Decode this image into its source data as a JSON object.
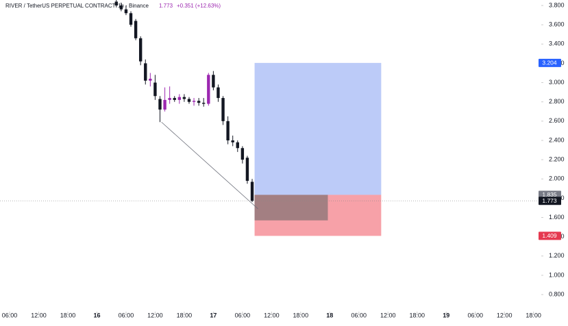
{
  "chart_data": {
    "type": "candlestick",
    "header": {
      "symbol": "RIVER / TetherUS PERPETUAL CONTRACT",
      "interval": "1h · Binance",
      "last": 1.773,
      "change": "+0.351 (+12.63%)"
    },
    "x": [
      28,
      29,
      30,
      31,
      32,
      33,
      34,
      35,
      36,
      37,
      38,
      39,
      40,
      41,
      42,
      43,
      44,
      45,
      46,
      47,
      48,
      49,
      50,
      51,
      52,
      53,
      54,
      55,
      56
    ],
    "open": [
      3.84,
      3.8,
      3.76,
      3.72,
      3.64,
      3.46,
      3.2,
      3.02,
      3.0,
      2.83,
      2.72,
      2.82,
      2.84,
      2.82,
      2.85,
      2.83,
      2.8,
      2.81,
      2.79,
      2.78,
      3.08,
      2.95,
      2.84,
      2.6,
      2.4,
      2.38,
      2.32,
      2.22,
      1.97
    ],
    "high": [
      3.86,
      3.83,
      3.8,
      3.74,
      3.66,
      3.48,
      3.24,
      3.1,
      3.08,
      2.86,
      2.95,
      2.96,
      2.86,
      2.88,
      2.88,
      2.85,
      2.84,
      2.84,
      2.84,
      3.1,
      3.12,
      2.98,
      2.86,
      2.65,
      2.45,
      2.4,
      2.34,
      2.24,
      2.0
    ],
    "low": [
      3.78,
      3.74,
      3.7,
      3.58,
      3.44,
      3.18,
      2.98,
      2.96,
      2.82,
      2.59,
      2.7,
      2.78,
      2.8,
      2.78,
      2.8,
      2.78,
      2.76,
      2.76,
      2.75,
      2.76,
      2.92,
      2.8,
      2.56,
      2.36,
      2.34,
      2.28,
      2.16,
      1.95,
      1.76
    ],
    "close": [
      3.8,
      3.76,
      3.72,
      3.6,
      3.46,
      3.22,
      3.02,
      3.04,
      2.86,
      2.72,
      2.82,
      2.84,
      2.82,
      2.85,
      2.83,
      2.8,
      2.81,
      2.79,
      2.78,
      3.08,
      2.95,
      2.84,
      2.6,
      2.4,
      2.38,
      2.32,
      2.2,
      1.98,
      1.773
    ],
    "up_color": "#9c27b0",
    "down_color": "#131722",
    "xlim": [
      4.02,
      115.6
    ],
    "xticks": [
      {
        "value": 6,
        "label": "06:00"
      },
      {
        "value": 12,
        "label": "12:00"
      },
      {
        "value": 18,
        "label": "18:00"
      },
      {
        "value": 24,
        "label": "16"
      },
      {
        "value": 30,
        "label": "06:00"
      },
      {
        "value": 36,
        "label": "12:00"
      },
      {
        "value": 42,
        "label": "18:00"
      },
      {
        "value": 48,
        "label": "17"
      },
      {
        "value": 54,
        "label": "06:00"
      },
      {
        "value": 60,
        "label": "12:00"
      },
      {
        "value": 66,
        "label": "18:00"
      },
      {
        "value": 72,
        "label": "18"
      },
      {
        "value": 78,
        "label": "06:00"
      },
      {
        "value": 84,
        "label": "12:00"
      },
      {
        "value": 90,
        "label": "18:00"
      },
      {
        "value": 96,
        "label": "19"
      },
      {
        "value": 102,
        "label": "06:00"
      },
      {
        "value": 108,
        "label": "12:00"
      },
      {
        "value": 114,
        "label": "18:00"
      }
    ],
    "ylim": [
      0.623,
      3.857
    ],
    "yticks": [
      {
        "value": 0.8,
        "label": "0.800"
      },
      {
        "value": 1.0,
        "label": "1.000"
      },
      {
        "value": 1.2,
        "label": "1.200"
      },
      {
        "value": 1.4,
        "label": "1.400"
      },
      {
        "value": 1.6,
        "label": "1.600"
      },
      {
        "value": 1.8,
        "label": "1.800"
      },
      {
        "value": 2.0,
        "label": "2.000"
      },
      {
        "value": 2.2,
        "label": "2.200"
      },
      {
        "value": 2.4,
        "label": "2.400"
      },
      {
        "value": 2.6,
        "label": "2.600"
      },
      {
        "value": 2.8,
        "label": "2.800"
      },
      {
        "value": 3.0,
        "label": "3.000"
      },
      {
        "value": 3.2,
        "label": "3.200"
      },
      {
        "value": 3.4,
        "label": "3.400"
      },
      {
        "value": 3.6,
        "label": "3.600"
      },
      {
        "value": 3.8,
        "label": "3.800"
      }
    ],
    "position": {
      "x_start": 56.5,
      "x_end": 82.6,
      "target": 3.204,
      "entry": 1.835,
      "stop": 1.409,
      "profit_color": "#bccbf8",
      "loss_color": "#f7a1a8",
      "target_tag": "#2962ff",
      "entry_tag": "#787b86",
      "stop_tag": "#e53950"
    },
    "shaded_range": {
      "x_start": 56.5,
      "x_end": 71.6,
      "top": 1.835,
      "bottom": 1.57,
      "color": "#7f7072"
    },
    "trend_line": {
      "x": [
        37.3,
        57.2
      ],
      "y": [
        2.59,
        1.69
      ],
      "color": "#6a6d78"
    },
    "last_price": 1.773
  }
}
